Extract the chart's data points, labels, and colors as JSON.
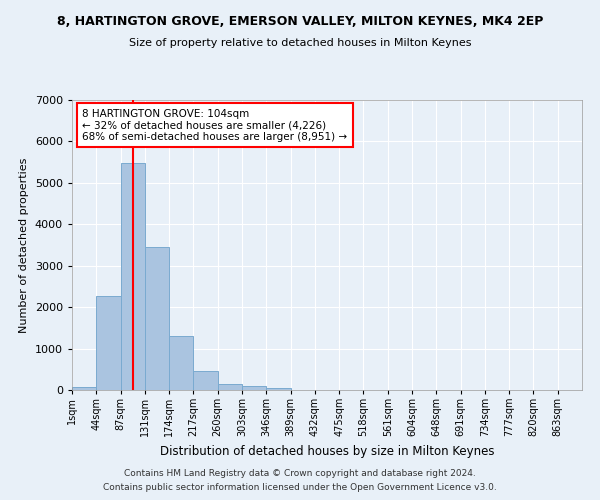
{
  "title": "8, HARTINGTON GROVE, EMERSON VALLEY, MILTON KEYNES, MK4 2EP",
  "subtitle": "Size of property relative to detached houses in Milton Keynes",
  "xlabel": "Distribution of detached houses by size in Milton Keynes",
  "ylabel": "Number of detached properties",
  "bar_values": [
    75,
    2280,
    5480,
    3450,
    1310,
    465,
    155,
    85,
    55,
    0,
    0,
    0,
    0,
    0,
    0,
    0,
    0,
    0,
    0,
    0,
    0
  ],
  "bar_labels": [
    "1sqm",
    "44sqm",
    "87sqm",
    "131sqm",
    "174sqm",
    "217sqm",
    "260sqm",
    "303sqm",
    "346sqm",
    "389sqm",
    "432sqm",
    "475sqm",
    "518sqm",
    "561sqm",
    "604sqm",
    "648sqm",
    "691sqm",
    "734sqm",
    "777sqm",
    "820sqm",
    "863sqm"
  ],
  "bar_color": "#aac4e0",
  "bar_edge_color": "#7aaad0",
  "vline_color": "red",
  "vline_x": 2.5,
  "annotation_title": "8 HARTINGTON GROVE: 104sqm",
  "annotation_line1": "← 32% of detached houses are smaller (4,226)",
  "annotation_line2": "68% of semi-detached houses are larger (8,951) →",
  "ylim": [
    0,
    7000
  ],
  "yticks": [
    0,
    1000,
    2000,
    3000,
    4000,
    5000,
    6000,
    7000
  ],
  "footer1": "Contains HM Land Registry data © Crown copyright and database right 2024.",
  "footer2": "Contains public sector information licensed under the Open Government Licence v3.0.",
  "bg_color": "#e8f0f8",
  "grid_color": "#ffffff"
}
